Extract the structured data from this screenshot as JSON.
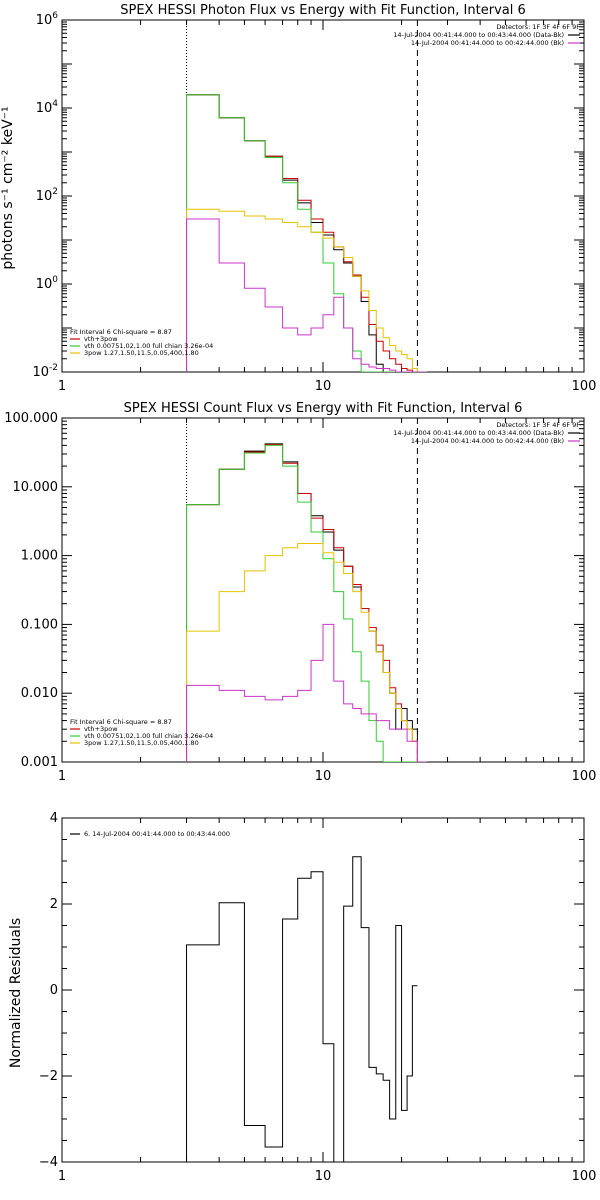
{
  "chart_data": [
    {
      "type": "line",
      "title": "SPEX HESSI Photon Flux vs Energy with Fit Function, Interval 6",
      "ylabel": "photons s⁻¹ cm⁻² keV⁻¹",
      "xlabel": "",
      "xscale": "log",
      "yscale": "log",
      "xlim": [
        1,
        100
      ],
      "ylim": [
        0.01,
        1000000
      ],
      "xticks": [
        {
          "v": 1,
          "label": "1"
        },
        {
          "v": 10,
          "label": "10"
        },
        {
          "v": 100,
          "label": "100"
        }
      ],
      "yticks": [
        {
          "v": 0.01,
          "base": "10",
          "exp": "-2"
        },
        {
          "v": 1,
          "base": "10",
          "exp": "0"
        },
        {
          "v": 100,
          "base": "10",
          "exp": "2"
        },
        {
          "v": 10000,
          "base": "10",
          "exp": "4"
        },
        {
          "v": 1000000,
          "base": "10",
          "exp": "6"
        }
      ],
      "vlines": [
        {
          "x": 3.0,
          "style": "dotted"
        },
        {
          "x": 23.0,
          "style": "dashed"
        }
      ],
      "header_lines": [
        "Detectors: 1F 3F 4F 6F 9F",
        "14-Jul-2004 00:41:44.000 to 00:43:44.000 (Data-Bk)",
        "14-Jul-2004 00:41:44.000 to 00:42:44.000 (Bk)"
      ],
      "header_colors": [
        "",
        "#000000",
        "#cc33cc"
      ],
      "legend_lines": [
        {
          "text": "Fit Interval 6   Chi-square = 8.87",
          "color": ""
        },
        {
          "text": "vth+3pow",
          "color": "#cc0000"
        },
        {
          "text": "vth 0.00751,02,1.00  full chian 3.26e-04",
          "color": "#33cc33"
        },
        {
          "text": "3pow 1.27,1.50,11.5,0.05,400,1.80",
          "color": "#e6c200"
        }
      ],
      "edges": [
        3,
        4,
        5,
        6,
        7,
        8,
        9,
        10,
        11,
        12,
        13,
        14,
        15,
        16,
        17,
        18,
        19,
        20,
        21,
        22,
        23,
        25
      ],
      "series": [
        {
          "name": "Data-Bk",
          "color": "#000000",
          "values": [
            20000,
            6000,
            1800,
            800,
            230,
            70,
            25,
            13,
            6,
            3,
            1.5,
            0.4,
            0.07,
            0.015,
            0.01,
            0.01,
            0.01,
            0.01,
            0.01,
            0.01,
            0.01
          ]
        },
        {
          "name": "vth+3pow",
          "color": "#cc0000",
          "values": [
            20000,
            6000,
            1800,
            800,
            250,
            80,
            30,
            15,
            7,
            3.2,
            1.6,
            0.5,
            0.12,
            0.05,
            0.03,
            0.02,
            0.015,
            0.012,
            0.011,
            0.01,
            0.01
          ]
        },
        {
          "name": "vth",
          "color": "#33cc33",
          "values": [
            20000,
            6000,
            1800,
            750,
            200,
            50,
            15,
            3,
            0.6,
            0.1,
            0.03,
            0.01,
            0.01,
            0.01,
            0.01,
            0.01,
            0.01,
            0.01,
            0.01,
            0.01,
            0.01
          ]
        },
        {
          "name": "3pow",
          "color": "#e6c200",
          "values": [
            50,
            45,
            35,
            30,
            25,
            20,
            15,
            11,
            7,
            4,
            1.5,
            0.7,
            0.25,
            0.1,
            0.06,
            0.04,
            0.03,
            0.025,
            0.02,
            0.012,
            0.008
          ]
        },
        {
          "name": "Bk",
          "color": "#cc33cc",
          "values": [
            30,
            3,
            0.8,
            0.3,
            0.1,
            0.07,
            0.1,
            0.2,
            0.5,
            0.1,
            0.02,
            0.015,
            0.013,
            0.012,
            0.012,
            0.011,
            0.01,
            0.01,
            0.01,
            0.01,
            0.01
          ]
        }
      ]
    },
    {
      "type": "line",
      "title": "SPEX HESSI Count Flux vs Energy with Fit Function, Interval 6",
      "ylabel": "",
      "xlabel": "",
      "xscale": "log",
      "yscale": "log",
      "xlim": [
        1,
        100
      ],
      "ylim": [
        0.001,
        100
      ],
      "xticks": [
        {
          "v": 1,
          "label": "1"
        },
        {
          "v": 10,
          "label": "10"
        },
        {
          "v": 100,
          "label": "100"
        }
      ],
      "yticks": [
        {
          "v": 0.001,
          "label": "0.001"
        },
        {
          "v": 0.01,
          "label": "0.010"
        },
        {
          "v": 0.1,
          "label": "0.100"
        },
        {
          "v": 1,
          "label": "1.000"
        },
        {
          "v": 10,
          "label": "10.000"
        },
        {
          "v": 100,
          "label": "100.000"
        }
      ],
      "vlines": [
        {
          "x": 3.0,
          "style": "dotted"
        },
        {
          "x": 23.0,
          "style": "dashed"
        }
      ],
      "header_lines": [
        "Detectors: 1F 3F 4F 6F 9F",
        "14-Jul-2004 00:41:44.000 to 00:43:44.000 (Data-Bk)",
        "14-Jul-2004 00:41:44.000 to 00:42:44.000 (Bk)"
      ],
      "header_colors": [
        "",
        "#000000",
        "#cc33cc"
      ],
      "legend_lines": [
        {
          "text": "Fit Interval 6   Chi-square = 8.87",
          "color": ""
        },
        {
          "text": "vth+3pow",
          "color": "#cc0000"
        },
        {
          "text": "vth 0.00751,02,1.00  full chian 3.26e-04",
          "color": "#33cc33"
        },
        {
          "text": "3pow 1.27,1.50,11.5,0.05,400,1.80",
          "color": "#e6c200"
        }
      ],
      "edges": [
        3,
        4,
        5,
        6,
        7,
        8,
        9,
        10,
        11,
        12,
        13,
        14,
        15,
        16,
        17,
        18,
        19,
        20,
        21,
        22,
        23,
        25
      ],
      "series": [
        {
          "name": "Data-Bk",
          "color": "#000000",
          "values": [
            5.5,
            18,
            33,
            42,
            23,
            8,
            3.8,
            2.2,
            1.2,
            0.7,
            0.35,
            0.17,
            0.08,
            0.04,
            0.02,
            0.01,
            0.003,
            0.006,
            0.004,
            0.003,
            0.001
          ]
        },
        {
          "name": "vth+3pow",
          "color": "#cc0000",
          "values": [
            5.5,
            18,
            32,
            41,
            22,
            8,
            3.5,
            2.4,
            1.3,
            0.7,
            0.38,
            0.17,
            0.09,
            0.05,
            0.03,
            0.012,
            0.007,
            0.004,
            0.003,
            0.002,
            0.001
          ]
        },
        {
          "name": "vth",
          "color": "#33cc33",
          "values": [
            5.5,
            18,
            31,
            40,
            20,
            6,
            2.2,
            0.9,
            0.3,
            0.12,
            0.04,
            0.015,
            0.004,
            0.002,
            0.001,
            0.001,
            0.001,
            0.001,
            0.001,
            0.001,
            0.001
          ]
        },
        {
          "name": "3pow",
          "color": "#e6c200",
          "values": [
            0.08,
            0.3,
            0.6,
            1.0,
            1.3,
            1.5,
            1.5,
            1.1,
            0.8,
            0.55,
            0.3,
            0.15,
            0.08,
            0.04,
            0.02,
            0.01,
            0.006,
            0.004,
            0.003,
            0.002,
            0.001
          ]
        },
        {
          "name": "Bk",
          "color": "#cc33cc",
          "values": [
            0.013,
            0.011,
            0.009,
            0.008,
            0.009,
            0.011,
            0.03,
            0.1,
            0.015,
            0.007,
            0.006,
            0.005,
            0.005,
            0.004,
            0.004,
            0.003,
            0.003,
            0.003,
            0.002,
            0.002,
            0.001
          ]
        }
      ]
    },
    {
      "type": "line",
      "title": "",
      "ylabel": "Normalized Residuals",
      "xlabel": "",
      "xscale": "log",
      "yscale": "linear",
      "xlim": [
        1,
        100
      ],
      "ylim": [
        -4,
        4
      ],
      "xticks": [
        {
          "v": 1,
          "label": "1"
        },
        {
          "v": 10,
          "label": "10"
        },
        {
          "v": 100,
          "label": "100"
        }
      ],
      "yticks": [
        {
          "v": -4,
          "label": "−4"
        },
        {
          "v": -2,
          "label": "−2"
        },
        {
          "v": 0,
          "label": "0"
        },
        {
          "v": 2,
          "label": "2"
        },
        {
          "v": 4,
          "label": "4"
        }
      ],
      "legend_lines": [
        {
          "text": "6. 14-Jul-2004 00:41:44.000 to 00:43:44.000",
          "color": "#000000"
        }
      ],
      "edges": [
        3,
        4,
        5,
        6,
        7,
        8,
        9,
        10,
        11,
        12,
        13,
        14,
        15,
        16,
        17,
        18,
        19,
        20,
        21,
        22,
        23
      ],
      "series": [
        {
          "name": "",
          "color": "#000000",
          "values": [
            1.05,
            2.03,
            -3.15,
            -3.65,
            1.65,
            2.6,
            2.75,
            -1.25,
            -4.05,
            1.95,
            3.1,
            1.45,
            -1.8,
            -1.95,
            -2.1,
            -3.0,
            1.5,
            -2.8,
            -2.0,
            0.1
          ]
        }
      ]
    }
  ]
}
